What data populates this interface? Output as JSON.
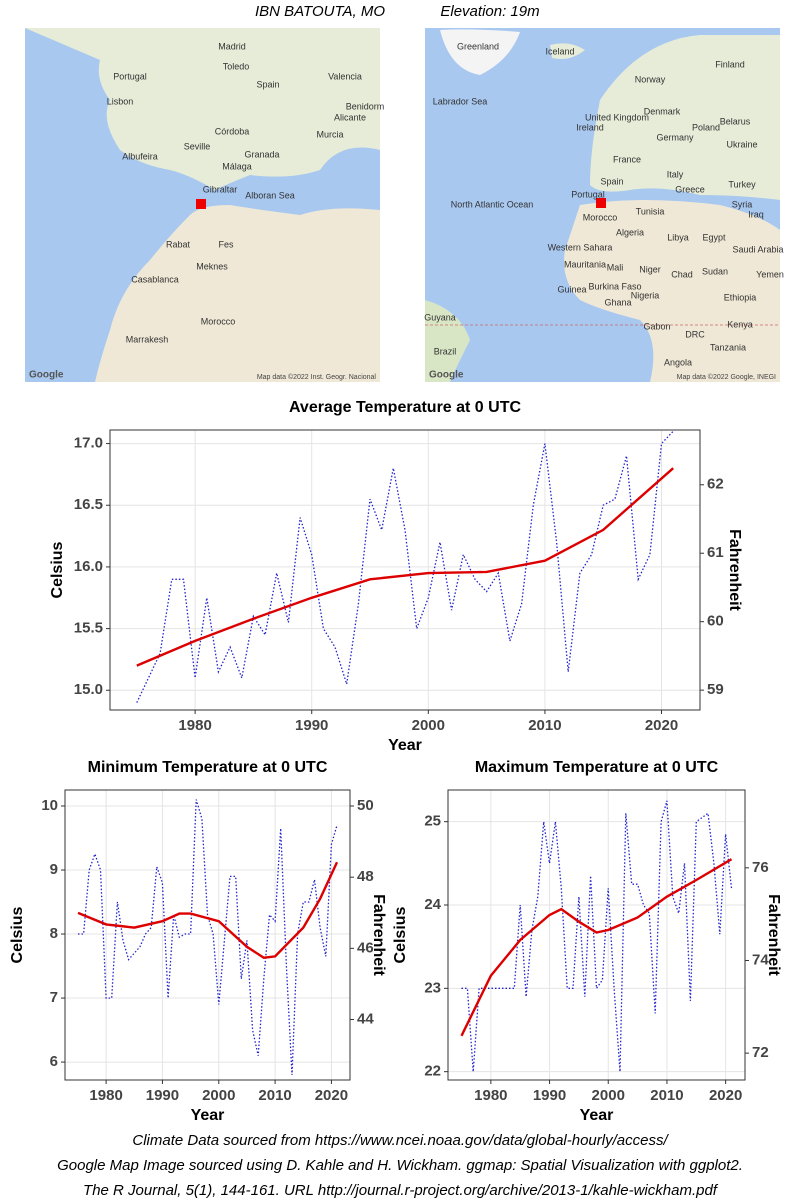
{
  "header": {
    "station": "IBN BATOUTA, MO",
    "elevation": "Elevation: 19m"
  },
  "maps": [
    {
      "labels": [
        "Madrid",
        "Portugal",
        "Spain",
        "Toledo",
        "Valencia",
        "Lisbon",
        "Benidorm",
        "Alicante",
        "Seville",
        "Córdoba",
        "Granada",
        "Málaga",
        "Murcia",
        "Albufeira",
        "Gibraltar",
        "Alboran Sea",
        "Rabat",
        "Fes",
        "Casablanca",
        "Meknes",
        "Marrakesh",
        "Morocco"
      ],
      "logo": "Google",
      "attribution": "Map data ©2022 Inst. Geogr. Nacional"
    },
    {
      "labels": [
        "Greenland",
        "Iceland",
        "Norway",
        "Finland",
        "Labrador Sea",
        "United Kingdom",
        "Ireland",
        "Denmark",
        "Poland",
        "Germany",
        "Belarus",
        "Ukraine",
        "France",
        "Italy",
        "Spain",
        "Portugal",
        "Greece",
        "Turkey",
        "Morocco",
        "Tunisia",
        "Algeria",
        "Libya",
        "Egypt",
        "North Atlantic Ocean",
        "Western Sahara",
        "Mauritania",
        "Mali",
        "Niger",
        "Chad",
        "Sudan",
        "Saudi Arabia",
        "Syria",
        "Iraq",
        "Burkina Faso",
        "Nigeria",
        "Guinea",
        "Ghana",
        "Ethiopia",
        "Kenya",
        "DRC",
        "Gabon",
        "Angola",
        "Tanzania",
        "Brazil",
        "Guyana",
        "Yemen"
      ],
      "logo": "Google",
      "attribution": "Map data ©2022 Google, INEGI"
    }
  ],
  "chart_data": [
    {
      "type": "line",
      "title": "Average Temperature at 0 UTC",
      "x_label": "Year",
      "y_label": "Celsius",
      "y2_label": "Fahrenheit",
      "xlim": [
        1972.7,
        2023.3
      ],
      "xticks": [
        1980,
        1990,
        2000,
        2010,
        2020
      ],
      "ylim": [
        14.84,
        17.11
      ],
      "yticks": [
        {
          "value": 15,
          "label": "15.0"
        },
        {
          "value": 15.5,
          "label": "15.5"
        },
        {
          "value": 16,
          "label": "16.0"
        },
        {
          "value": 16.5,
          "label": "16.5"
        },
        {
          "value": 17,
          "label": "17.0"
        }
      ],
      "y2lim": [
        58.71,
        62.8
      ],
      "y2ticks": [
        59,
        60,
        61,
        62
      ],
      "grid": true,
      "series": [
        {
          "color": "#2222cc",
          "style": "dotted",
          "x": [
            1975,
            1976,
            1977,
            1978,
            1979,
            1980,
            1981,
            1982,
            1983,
            1984,
            1985,
            1986,
            1987,
            1988,
            1989,
            1990,
            1991,
            1992,
            1993,
            1994,
            1995,
            1996,
            1997,
            1998,
            1999,
            2000,
            2001,
            2002,
            2003,
            2004,
            2005,
            2006,
            2007,
            2008,
            2009,
            2010,
            2011,
            2012,
            2013,
            2014,
            2015,
            2016,
            2017,
            2018,
            2019,
            2020,
            2021
          ],
          "values": [
            14.9,
            15.1,
            15.3,
            15.9,
            15.9,
            15.1,
            15.75,
            15.15,
            15.35,
            15.1,
            15.6,
            15.45,
            15.95,
            15.55,
            16.4,
            16.1,
            15.5,
            15.35,
            15.05,
            15.7,
            16.55,
            16.3,
            16.8,
            16.3,
            15.5,
            15.75,
            16.2,
            15.65,
            16.1,
            15.9,
            15.8,
            15.95,
            15.4,
            15.7,
            16.5,
            17.0,
            16.2,
            15.15,
            15.95,
            16.1,
            16.5,
            16.55,
            16.9,
            15.9,
            16.1,
            17.0,
            17.1
          ]
        },
        {
          "color": "#dd0000",
          "style": "solid",
          "x": [
            1975,
            1980,
            1985,
            1990,
            1995,
            2000,
            2005,
            2010,
            2015,
            2021
          ],
          "values": [
            15.2,
            15.4,
            15.58,
            15.75,
            15.9,
            15.95,
            15.96,
            16.05,
            16.3,
            16.8
          ]
        }
      ]
    },
    {
      "type": "line",
      "title": "Minimum Temperature at 0 UTC",
      "x_label": "Year",
      "y_label": "Celsius",
      "y2_label": "Fahrenheit",
      "xlim": [
        1972.7,
        2023.3
      ],
      "xticks": [
        1980,
        1990,
        2000,
        2010,
        2020
      ],
      "ylim": [
        5.72,
        10.25
      ],
      "yticks": [
        6,
        7,
        8,
        9,
        10
      ],
      "y2lim": [
        42.3,
        50.45
      ],
      "y2ticks": [
        44,
        46,
        48,
        50
      ],
      "grid": true,
      "series": [
        {
          "color": "#2222cc",
          "style": "dotted",
          "x": [
            1975,
            1976,
            1977,
            1978,
            1979,
            1980,
            1981,
            1982,
            1983,
            1984,
            1985,
            1986,
            1987,
            1988,
            1989,
            1990,
            1991,
            1992,
            1993,
            1994,
            1995,
            1996,
            1997,
            1998,
            1999,
            2000,
            2001,
            2002,
            2003,
            2004,
            2005,
            2006,
            2007,
            2008,
            2009,
            2010,
            2011,
            2012,
            2013,
            2014,
            2015,
            2016,
            2017,
            2018,
            2019,
            2020,
            2021
          ],
          "values": [
            8.0,
            8.0,
            9.0,
            9.25,
            9.0,
            7.0,
            7.0,
            8.5,
            7.9,
            7.6,
            7.7,
            7.8,
            8.0,
            8.1,
            9.05,
            8.8,
            7.0,
            8.3,
            7.95,
            8.0,
            8.0,
            10.1,
            9.8,
            8.3,
            8.0,
            6.9,
            7.9,
            8.9,
            8.9,
            7.3,
            7.9,
            6.5,
            6.1,
            7.3,
            8.3,
            8.2,
            9.65,
            7.5,
            5.8,
            8.0,
            8.5,
            8.5,
            8.85,
            8.1,
            7.65,
            9.4,
            9.7
          ]
        },
        {
          "color": "#dd0000",
          "style": "solid",
          "x": [
            1975,
            1980,
            1985,
            1990,
            1993,
            1995,
            2000,
            2005,
            2008,
            2010,
            2015,
            2018,
            2021
          ],
          "values": [
            8.33,
            8.15,
            8.1,
            8.2,
            8.32,
            8.32,
            8.2,
            7.8,
            7.63,
            7.65,
            8.1,
            8.55,
            9.12
          ]
        }
      ]
    },
    {
      "type": "line",
      "title": "Maximum Temperature at 0 UTC",
      "x_label": "Year",
      "y_label": "Celsius",
      "y2_label": "Fahrenheit",
      "xlim": [
        1972.7,
        2023.3
      ],
      "xticks": [
        1980,
        1990,
        2000,
        2010,
        2020
      ],
      "ylim": [
        21.9,
        25.38
      ],
      "yticks": [
        22,
        23,
        24,
        25
      ],
      "y2lim": [
        71.42,
        77.68
      ],
      "y2ticks": [
        72,
        74,
        76
      ],
      "grid": true,
      "series": [
        {
          "color": "#2222cc",
          "style": "dotted",
          "x": [
            1975,
            1976,
            1977,
            1978,
            1979,
            1980,
            1981,
            1982,
            1983,
            1984,
            1985,
            1986,
            1987,
            1988,
            1989,
            1990,
            1991,
            1992,
            1993,
            1994,
            1995,
            1996,
            1997,
            1998,
            1999,
            2000,
            2001,
            2002,
            2003,
            2004,
            2005,
            2006,
            2007,
            2008,
            2009,
            2010,
            2011,
            2012,
            2013,
            2014,
            2015,
            2016,
            2017,
            2018,
            2019,
            2020,
            2021
          ],
          "values": [
            23.0,
            23.0,
            22.0,
            23.0,
            23.0,
            23.0,
            23.0,
            23.0,
            23.0,
            23.0,
            24.0,
            22.9,
            23.7,
            24.1,
            25.0,
            24.5,
            25.0,
            24.2,
            23.0,
            23.0,
            24.1,
            22.9,
            24.35,
            23.0,
            23.1,
            24.2,
            23.0,
            22.0,
            25.1,
            24.25,
            24.25,
            24.0,
            23.9,
            22.7,
            25.0,
            25.25,
            24.1,
            23.9,
            24.5,
            22.85,
            25.0,
            25.05,
            25.1,
            24.5,
            23.65,
            24.85,
            24.2
          ]
        },
        {
          "color": "#dd0000",
          "style": "solid",
          "x": [
            1975,
            1980,
            1985,
            1990,
            1992,
            1995,
            1998,
            2000,
            2005,
            2010,
            2015,
            2021
          ],
          "values": [
            22.43,
            23.15,
            23.58,
            23.88,
            23.95,
            23.8,
            23.67,
            23.7,
            23.85,
            24.1,
            24.3,
            24.55
          ]
        }
      ]
    }
  ],
  "footer": [
    "Climate Data sourced from https://www.ncei.noaa.gov/data/global-hourly/access/",
    "Google Map Image sourced using D. Kahle and H. Wickham. ggmap: Spatial Visualization with ggplot2.",
    "The R Journal, 5(1), 144-161. URL http://journal.r-project.org/archive/2013-1/kahle-wickham.pdf"
  ]
}
